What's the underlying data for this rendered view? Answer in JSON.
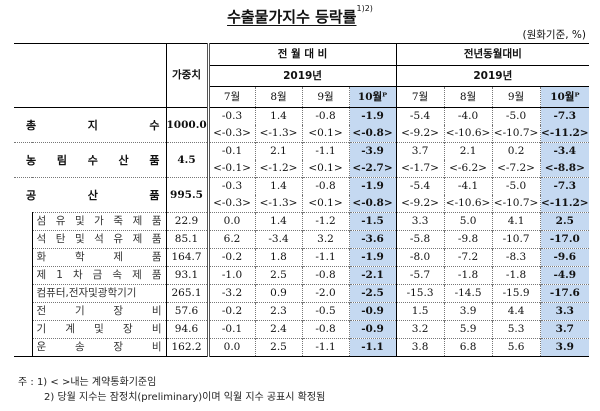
{
  "title": {
    "text": "수출물가지수 등락률",
    "sup": "1)2)"
  },
  "unit": "(원화기준, %)",
  "header": {
    "weight_label": "가중치",
    "group1": "전 월 대 비",
    "group2": "전년동월대비",
    "year1": "2019년",
    "year2": "2019년",
    "months": [
      "7월",
      "8월",
      "9월",
      "10월ᴾ"
    ]
  },
  "rows": [
    {
      "label": "총 지 수",
      "chars": [
        "총",
        "지",
        "수"
      ],
      "type": "major",
      "weight": "1000.0",
      "mom": [
        "-0.3",
        "1.4",
        "-0.8",
        "-1.9"
      ],
      "mom_c": [
        "<-0.3>",
        "<-1.3>",
        "<0.1>",
        "<-0.8>"
      ],
      "yoy": [
        "-5.4",
        "-4.0",
        "-5.0",
        "-7.3"
      ],
      "yoy_c": [
        "<-9.2>",
        "<-10.6>",
        "<-10.7>",
        "<-11.2>"
      ]
    },
    {
      "label": "농림수산품",
      "chars": [
        "농",
        "림",
        "수",
        "산",
        "품"
      ],
      "type": "major",
      "weight": "4.5",
      "mom": [
        "-0.1",
        "2.1",
        "-1.1",
        "-3.9"
      ],
      "mom_c": [
        "<-0.1>",
        "<-1.2>",
        "<0.1>",
        "<-2.7>"
      ],
      "yoy": [
        "3.7",
        "2.1",
        "0.2",
        "-3.4"
      ],
      "yoy_c": [
        "<-1.7>",
        "<-6.2>",
        "<-7.2>",
        "<-8.8>"
      ]
    },
    {
      "label": "공 산 품",
      "chars": [
        "공",
        "산",
        "품"
      ],
      "type": "major",
      "weight": "995.5",
      "mom": [
        "-0.3",
        "1.4",
        "-0.8",
        "-1.9"
      ],
      "mom_c": [
        "<-0.3>",
        "<-1.3>",
        "<0.1>",
        "<-0.8>"
      ],
      "yoy": [
        "-5.4",
        "-4.1",
        "-5.0",
        "-7.3"
      ],
      "yoy_c": [
        "<-9.2>",
        "<-10.6>",
        "<-10.7>",
        "<-11.2>"
      ]
    },
    {
      "label": "섬유및가죽제품",
      "chars": [
        "섬",
        "유",
        "및",
        "가",
        "죽",
        "제",
        "품"
      ],
      "type": "minor",
      "weight": "22.9",
      "mom": [
        "0.0",
        "1.4",
        "-1.2",
        "-1.5"
      ],
      "yoy": [
        "3.3",
        "5.0",
        "4.1",
        "2.5"
      ]
    },
    {
      "label": "석탄및석유제품",
      "chars": [
        "석",
        "탄",
        "및",
        "석",
        "유",
        "제",
        "품"
      ],
      "type": "minor",
      "weight": "85.1",
      "mom": [
        "6.2",
        "-3.4",
        "3.2",
        "-3.6"
      ],
      "yoy": [
        "-5.8",
        "-9.8",
        "-10.7",
        "-17.0"
      ]
    },
    {
      "label": "화학제품",
      "chars": [
        "화",
        "학",
        "제",
        "품"
      ],
      "type": "minor",
      "weight": "164.7",
      "mom": [
        "-0.2",
        "1.8",
        "-1.1",
        "-1.9"
      ],
      "yoy": [
        "-8.0",
        "-7.2",
        "-8.3",
        "-9.6"
      ]
    },
    {
      "label": "제1차금속제품",
      "chars": [
        "제",
        "1",
        "차",
        "금",
        "속",
        "제",
        "품"
      ],
      "type": "minor",
      "weight": "93.1",
      "mom": [
        "-1.0",
        "2.5",
        "-0.8",
        "-2.1"
      ],
      "yoy": [
        "-5.7",
        "-1.8",
        "-1.8",
        "-4.9"
      ]
    },
    {
      "label": "컴퓨터,전자및광학기기",
      "chars": [
        "컴퓨터,전자및광학기기"
      ],
      "type": "minor",
      "weight": "265.1",
      "mom": [
        "-3.2",
        "0.9",
        "-2.0",
        "-2.5"
      ],
      "yoy": [
        "-15.3",
        "-14.5",
        "-15.9",
        "-17.6"
      ]
    },
    {
      "label": "전기장비",
      "chars": [
        "전",
        "기",
        "장",
        "비"
      ],
      "type": "minor",
      "weight": "57.6",
      "mom": [
        "-0.2",
        "2.3",
        "-0.5",
        "-0.9"
      ],
      "yoy": [
        "1.5",
        "3.9",
        "4.4",
        "3.3"
      ]
    },
    {
      "label": "기계및장비",
      "chars": [
        "기",
        "계",
        "및",
        "장",
        "비"
      ],
      "type": "minor",
      "weight": "94.6",
      "mom": [
        "-0.1",
        "2.4",
        "-0.8",
        "-0.9"
      ],
      "yoy": [
        "3.2",
        "5.9",
        "5.3",
        "3.7"
      ]
    },
    {
      "label": "운송장비",
      "chars": [
        "운",
        "송",
        "장",
        "비"
      ],
      "type": "minor",
      "weight": "162.2",
      "mom": [
        "0.0",
        "2.5",
        "-1.1",
        "-1.1"
      ],
      "yoy": [
        "3.8",
        "6.8",
        "5.6",
        "3.9"
      ]
    }
  ],
  "notes": {
    "prefix": "주 :",
    "n1": "1) < >내는 계약통화기준임",
    "n2": "2) 당월 지수는 잠정치(preliminary)이며 익월 지수 공표시 확정됨"
  },
  "colors": {
    "highlight": "#c5d9f1",
    "border": "#000000"
  }
}
